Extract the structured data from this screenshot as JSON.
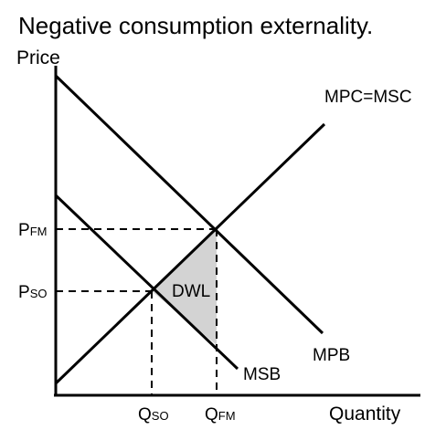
{
  "title": "Negative consumption externality.",
  "axes": {
    "y_label": "Price",
    "x_label": "Quantity"
  },
  "curves": {
    "supply_label": "MPC=MSC",
    "private_benefit_label": "MPB",
    "social_benefit_label": "MSB"
  },
  "region_label": "DWL",
  "ticks": {
    "p_fm": {
      "main": "P",
      "sub": "FM"
    },
    "p_so": {
      "main": "P",
      "sub": "SO"
    },
    "q_so": {
      "main": "Q",
      "sub": "SO"
    },
    "q_fm": {
      "main": "Q",
      "sub": "FM"
    }
  },
  "colors": {
    "line": "#000000",
    "dwl_fill": "#d3d3d3",
    "background": "#ffffff"
  }
}
